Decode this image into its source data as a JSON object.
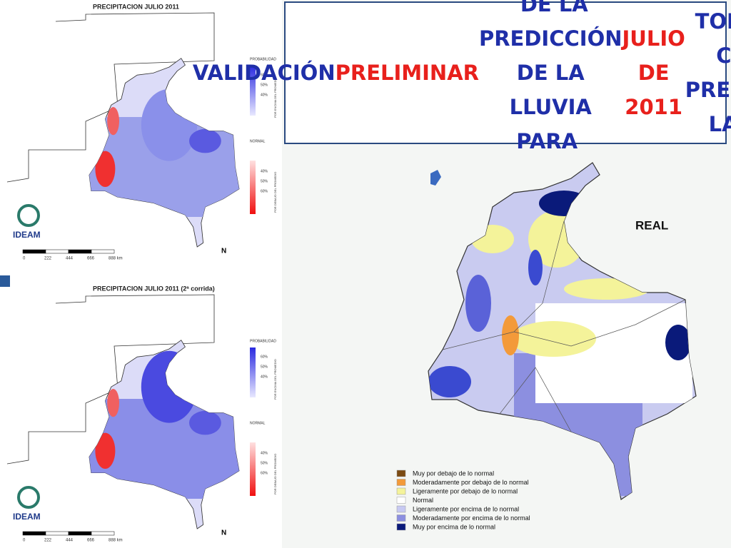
{
  "title": {
    "parts": [
      {
        "text": "VALIDACIÓN ",
        "color": "#1f2fa8"
      },
      {
        "text": "PRELIMINAR",
        "color": "#e8201c"
      },
      {
        "text": " DE LA PREDICCIÓN DE LA LLUVIA PARA ",
        "color": "#1f2fa8"
      },
      {
        "text": "JULIO DE 2011",
        "color": "#e8201c"
      },
      {
        "text": " TOMANDO COMO PREDICTOR LA TSM",
        "color": "#1f2fa8"
      }
    ]
  },
  "maps": [
    {
      "title": "PRECIPITACION  JULIO 2011",
      "legend": {
        "heading": "PROBABILIDAD",
        "above": [
          "60%",
          "50%",
          "40%"
        ],
        "above_caption": "POR ENCIMA DEL PROMEDIO",
        "normal": "NORMAL",
        "below": [
          "40%",
          "50%",
          "60%"
        ],
        "below_caption": "POR DEBAJO DEL PROMEDIO"
      },
      "scale": [
        "0",
        "222",
        "444",
        "666",
        "888 km"
      ],
      "logo": "IDEAM",
      "north": "N"
    },
    {
      "title": "PRECIPITACION  JULIO 2011 (2ª corrida)",
      "legend": {
        "heading": "PROBABILIDAD",
        "above": [
          "60%",
          "50%",
          "40%"
        ],
        "above_caption": "POR ENCIMA DEL PROMEDIO",
        "normal": "NORMAL",
        "below": [
          "40%",
          "50%",
          "60%"
        ],
        "below_caption": "POR DEBAJO DEL PROMEDIO"
      },
      "scale": [
        "0",
        "222",
        "444",
        "666",
        "888 km"
      ],
      "logo": "IDEAM",
      "north": "N"
    }
  ],
  "real_map": {
    "label": "REAL",
    "legend": [
      {
        "label": "Muy por debajo de lo normal",
        "color": "#7b4a12"
      },
      {
        "label": "Moderadamente por debajo de lo normal",
        "color": "#f39a3a"
      },
      {
        "label": "Ligeramente por debajo de lo normal",
        "color": "#f4f39a"
      },
      {
        "label": "Normal",
        "color": "#ffffff"
      },
      {
        "label": "Ligeramente por encima de lo normal",
        "color": "#c7c9f2"
      },
      {
        "label": "Moderadamente por encima de lo normal",
        "color": "#8c8fe0"
      },
      {
        "label": "Muy por encima de lo normal",
        "color": "#0a1a7a"
      }
    ]
  }
}
